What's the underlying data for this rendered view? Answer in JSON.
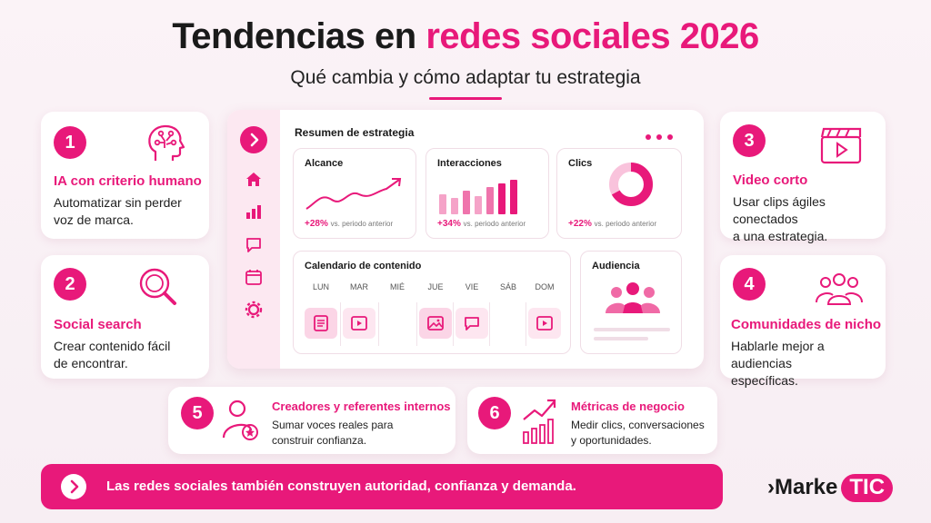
{
  "header": {
    "title_main": "Tendencias en",
    "title_accent": "redes sociales 2026",
    "subtitle": "Qué cambia y cómo adaptar tu estrategia"
  },
  "cards": [
    {
      "number": "1",
      "title": "IA con criterio humano",
      "desc_l1": "Automatizar sin perder",
      "desc_l2": "voz de marca.",
      "icon": "ai-brain-icon"
    },
    {
      "number": "2",
      "title": "Social search",
      "desc_l1": "Crear contenido fácil",
      "desc_l2": "de encontrar.",
      "icon": "search-icon"
    },
    {
      "number": "3",
      "title": "Video corto",
      "desc_l1": "Usar clips ágiles conectados",
      "desc_l2": "a una estrategia.",
      "icon": "clapperboard-icon"
    },
    {
      "number": "4",
      "title": "Comunidades de nicho",
      "desc_l1": "Hablarle mejor a audiencias",
      "desc_l2": "específicas.",
      "icon": "community-icon"
    },
    {
      "number": "5",
      "title": "Creadores y referentes internos",
      "desc_l1": "Sumar voces reales para",
      "desc_l2": "construir confianza.",
      "icon": "creator-icon"
    },
    {
      "number": "6",
      "title": "Métricas de negocio",
      "desc_l1": "Medir clics, conversaciones",
      "desc_l2": "y oportunidades.",
      "icon": "growth-chart-icon"
    }
  ],
  "dashboard": {
    "title": "Resumen de estrategia",
    "sidebar_icons": [
      "home-icon",
      "bar-chart-icon",
      "chat-icon",
      "calendar-icon",
      "settings-icon"
    ],
    "panels": [
      {
        "title": "Alcance",
        "stat": "+28%",
        "stat_note": "vs. periodo anterior"
      },
      {
        "title": "Interacciones",
        "stat": "+34%",
        "stat_note": "vs. periodo anterior"
      },
      {
        "title": "Clics",
        "stat": "+22%",
        "stat_note": "vs. periodo anterior"
      }
    ],
    "calendar": {
      "title": "Calendario de contenido",
      "days": [
        "LUN",
        "MAR",
        "MIÉ",
        "JUE",
        "VIE",
        "SÁB",
        "DOM"
      ]
    },
    "audience": {
      "title": "Audiencia"
    }
  },
  "footer": {
    "banner": "Las redes sociales también construyen autoridad, confianza y demanda.",
    "logo_left": "Marke",
    "logo_right": "TIC"
  },
  "colors": {
    "accent": "#e8197a",
    "accent_light": "#fbd5e6",
    "background": "#fbf3f7"
  }
}
